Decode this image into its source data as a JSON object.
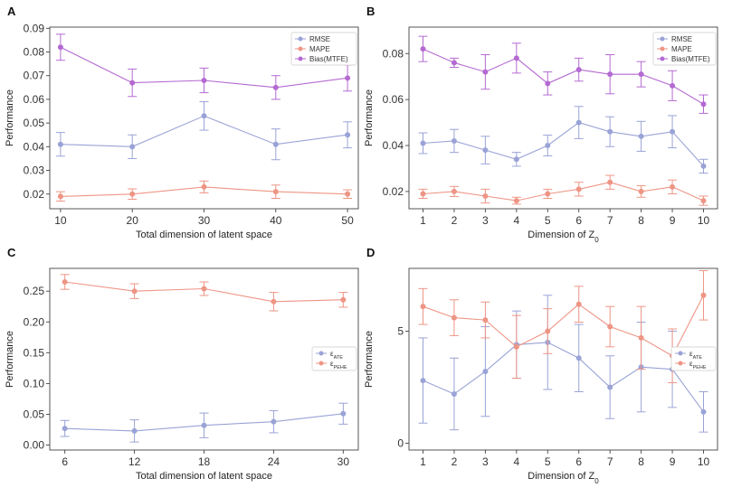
{
  "colors": {
    "rmse": "#9aa3d6",
    "mape": "#ee9585",
    "bias": "#b46ad2",
    "ate": "#9aa3d6",
    "pehe": "#ee9585",
    "frame": "#444444"
  },
  "chart_data": [
    {
      "panel": "A",
      "type": "line",
      "xlabel": "Total dimension of latent space",
      "ylabel": "Performance",
      "x": [
        10,
        20,
        30,
        40,
        50
      ],
      "xticks": [
        "10",
        "20",
        "30",
        "40",
        "50"
      ],
      "xlim": [
        8.5,
        51.5
      ],
      "ylim": [
        0.0138,
        0.0905
      ],
      "yticks": [
        0.02,
        0.03,
        0.04,
        0.05,
        0.06,
        0.07,
        0.08,
        0.09
      ],
      "ytick_labels": [
        "0.02",
        "0.03",
        "0.04",
        "0.05",
        "0.06",
        "0.07",
        "0.08",
        "0.09"
      ],
      "legend_position": "top-right",
      "series": [
        {
          "name": "RMSE",
          "label": "RMSE",
          "color_key": "rmse",
          "values": [
            0.041,
            0.04,
            0.053,
            0.041,
            0.045
          ],
          "errors": [
            0.005,
            0.005,
            0.006,
            0.0065,
            0.0055
          ]
        },
        {
          "name": "MAPE",
          "label": "MAPE",
          "color_key": "mape",
          "values": [
            0.019,
            0.02,
            0.023,
            0.021,
            0.02
          ],
          "errors": [
            0.002,
            0.0022,
            0.0025,
            0.0028,
            0.0018
          ]
        },
        {
          "name": "Bias(MTFE)",
          "label": "Bias(MTFE)",
          "color_key": "bias",
          "values": [
            0.082,
            0.067,
            0.068,
            0.065,
            0.069
          ],
          "errors": [
            0.0055,
            0.0058,
            0.0052,
            0.005,
            0.0055
          ]
        }
      ]
    },
    {
      "panel": "B",
      "type": "line",
      "xlabel": "Dimension of Z",
      "xlabel_subscript": "0",
      "ylabel": "Performance",
      "x": [
        1,
        2,
        3,
        4,
        5,
        6,
        7,
        8,
        9,
        10
      ],
      "xticks": [
        "1",
        "2",
        "3",
        "4",
        "5",
        "6",
        "7",
        "8",
        "9",
        "10"
      ],
      "xlim": [
        0.55,
        10.45
      ],
      "ylim": [
        0.0125,
        0.0915
      ],
      "yticks": [
        0.02,
        0.04,
        0.06,
        0.08
      ],
      "ytick_labels": [
        "0.02",
        "0.04",
        "0.06",
        "0.08"
      ],
      "legend_position": "top-right",
      "series": [
        {
          "name": "RMSE",
          "label": "RMSE",
          "color_key": "rmse",
          "values": [
            0.041,
            0.042,
            0.038,
            0.034,
            0.04,
            0.05,
            0.046,
            0.044,
            0.046,
            0.031
          ],
          "errors": [
            0.0045,
            0.005,
            0.006,
            0.003,
            0.0045,
            0.007,
            0.0065,
            0.0065,
            0.007,
            0.003
          ]
        },
        {
          "name": "MAPE",
          "label": "MAPE",
          "color_key": "mape",
          "values": [
            0.019,
            0.02,
            0.018,
            0.016,
            0.019,
            0.021,
            0.024,
            0.02,
            0.022,
            0.016
          ],
          "errors": [
            0.002,
            0.0022,
            0.003,
            0.0015,
            0.002,
            0.003,
            0.003,
            0.0025,
            0.003,
            0.002
          ]
        },
        {
          "name": "Bias(MTFE)",
          "label": "Bias(MTFE)",
          "color_key": "bias",
          "values": [
            0.082,
            0.076,
            0.072,
            0.078,
            0.067,
            0.073,
            0.071,
            0.071,
            0.066,
            0.058
          ],
          "errors": [
            0.0055,
            0.002,
            0.0075,
            0.0065,
            0.005,
            0.005,
            0.0085,
            0.0055,
            0.0065,
            0.004
          ]
        }
      ]
    },
    {
      "panel": "C",
      "type": "line",
      "xlabel": "Total dimension of latent space",
      "ylabel": "Performance",
      "x": [
        6,
        12,
        18,
        24,
        30
      ],
      "xticks": [
        "6",
        "12",
        "18",
        "24",
        "30"
      ],
      "xlim": [
        4.7,
        31.3
      ],
      "ylim": [
        -0.008,
        0.287
      ],
      "yticks": [
        0.0,
        0.05,
        0.1,
        0.15,
        0.2,
        0.25
      ],
      "ytick_labels": [
        "0.00",
        "0.05",
        "0.10",
        "0.15",
        "0.20",
        "0.25"
      ],
      "legend_position": "middle-right",
      "series": [
        {
          "name": "ε_ATE",
          "label": "ε",
          "sub": "ATE",
          "color_key": "ate",
          "values": [
            0.027,
            0.023,
            0.032,
            0.038,
            0.051
          ],
          "errors": [
            0.013,
            0.018,
            0.02,
            0.018,
            0.017
          ]
        },
        {
          "name": "ε_PEHE",
          "label": "ε",
          "sub": "PEHE",
          "color_key": "pehe",
          "values": [
            0.265,
            0.25,
            0.254,
            0.233,
            0.236
          ],
          "errors": [
            0.012,
            0.012,
            0.011,
            0.015,
            0.012
          ]
        }
      ]
    },
    {
      "panel": "D",
      "type": "line",
      "xlabel": "Dimension of Z",
      "xlabel_subscript": "0",
      "ylabel": "Performance",
      "x": [
        1,
        2,
        3,
        4,
        5,
        6,
        7,
        8,
        9,
        10
      ],
      "xticks": [
        "1",
        "2",
        "3",
        "4",
        "5",
        "6",
        "7",
        "8",
        "9",
        "10"
      ],
      "xlim": [
        0.55,
        10.45
      ],
      "ylim": [
        -0.3,
        7.8
      ],
      "yticks": [
        0,
        5
      ],
      "ytick_labels": [
        "0",
        "5"
      ],
      "legend_position": "middle-right",
      "series": [
        {
          "name": "ε_ATE",
          "label": "ε",
          "sub": "ATE",
          "color_key": "ate",
          "values": [
            2.8,
            2.2,
            3.2,
            4.4,
            4.5,
            3.8,
            2.5,
            3.4,
            3.3,
            1.4
          ],
          "errors": [
            1.9,
            1.6,
            2.0,
            1.5,
            2.1,
            1.5,
            1.4,
            2.0,
            1.7,
            0.9
          ]
        },
        {
          "name": "ε_PEHE",
          "label": "ε",
          "sub": "PEHE",
          "color_key": "pehe",
          "values": [
            6.1,
            5.6,
            5.5,
            4.3,
            5.0,
            6.2,
            5.2,
            4.7,
            3.9,
            6.6
          ],
          "errors": [
            0.8,
            0.8,
            0.8,
            1.4,
            1.0,
            0.8,
            0.9,
            1.4,
            1.2,
            1.1
          ]
        }
      ]
    }
  ]
}
